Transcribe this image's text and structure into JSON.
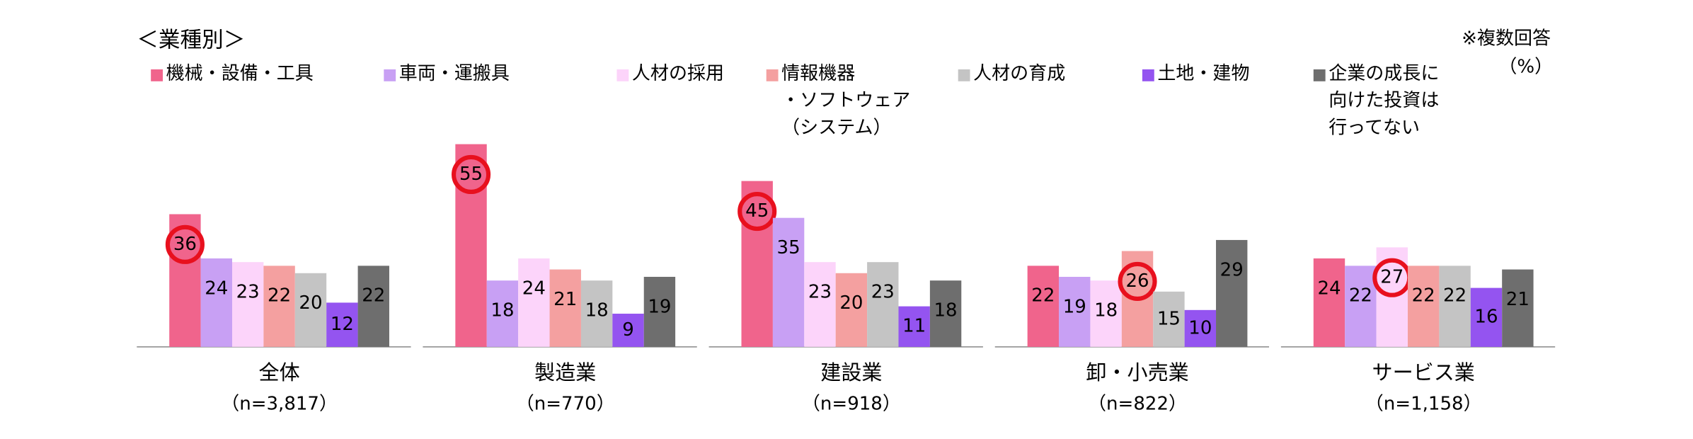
{
  "chart_data": {
    "type": "bar",
    "title": "＜業種別＞",
    "note": "※複数回答",
    "unit": "（%）",
    "categories": [
      "全体",
      "製造業",
      "建設業",
      "卸・小売業",
      "サービス業"
    ],
    "sample_sizes": [
      "（n=3,817）",
      "（n=770）",
      "（n=918）",
      "（n=822）",
      "（n=1,158）"
    ],
    "series": [
      {
        "name": "機械・設備・工具",
        "color": "#f0648c",
        "label_color": "#000000",
        "values": [
          36,
          55,
          45,
          22,
          24
        ]
      },
      {
        "name": "車両・運搬具",
        "color": "#c8a0f4",
        "label_color": "#000000",
        "values": [
          24,
          18,
          35,
          19,
          22
        ]
      },
      {
        "name": "人材の採用",
        "color": "#fcd4fa",
        "label_color": "#000000",
        "values": [
          23,
          24,
          23,
          18,
          27
        ]
      },
      {
        "name": "情報機器\n・ソフトウェア\n（システム）",
        "color": "#f4a0a0",
        "label_color": "#000000",
        "values": [
          22,
          21,
          20,
          26,
          22
        ]
      },
      {
        "name": "人材の育成",
        "color": "#c4c4c4",
        "label_color": "#000000",
        "values": [
          20,
          18,
          23,
          15,
          22
        ]
      },
      {
        "name": "土地・建物",
        "color": "#9454f0",
        "label_color": "#ffffff",
        "values": [
          12,
          9,
          11,
          10,
          16
        ]
      },
      {
        "name": "企業の成長に\n向けた投資は\n行ってない",
        "color": "#6e6e6e",
        "label_color": "#ffffff",
        "values": [
          22,
          19,
          18,
          29,
          21
        ]
      }
    ],
    "highlight_series": [
      0,
      0,
      0,
      3,
      2
    ],
    "highlight_color": "#e8101e",
    "ylim": [
      0,
      60
    ]
  }
}
